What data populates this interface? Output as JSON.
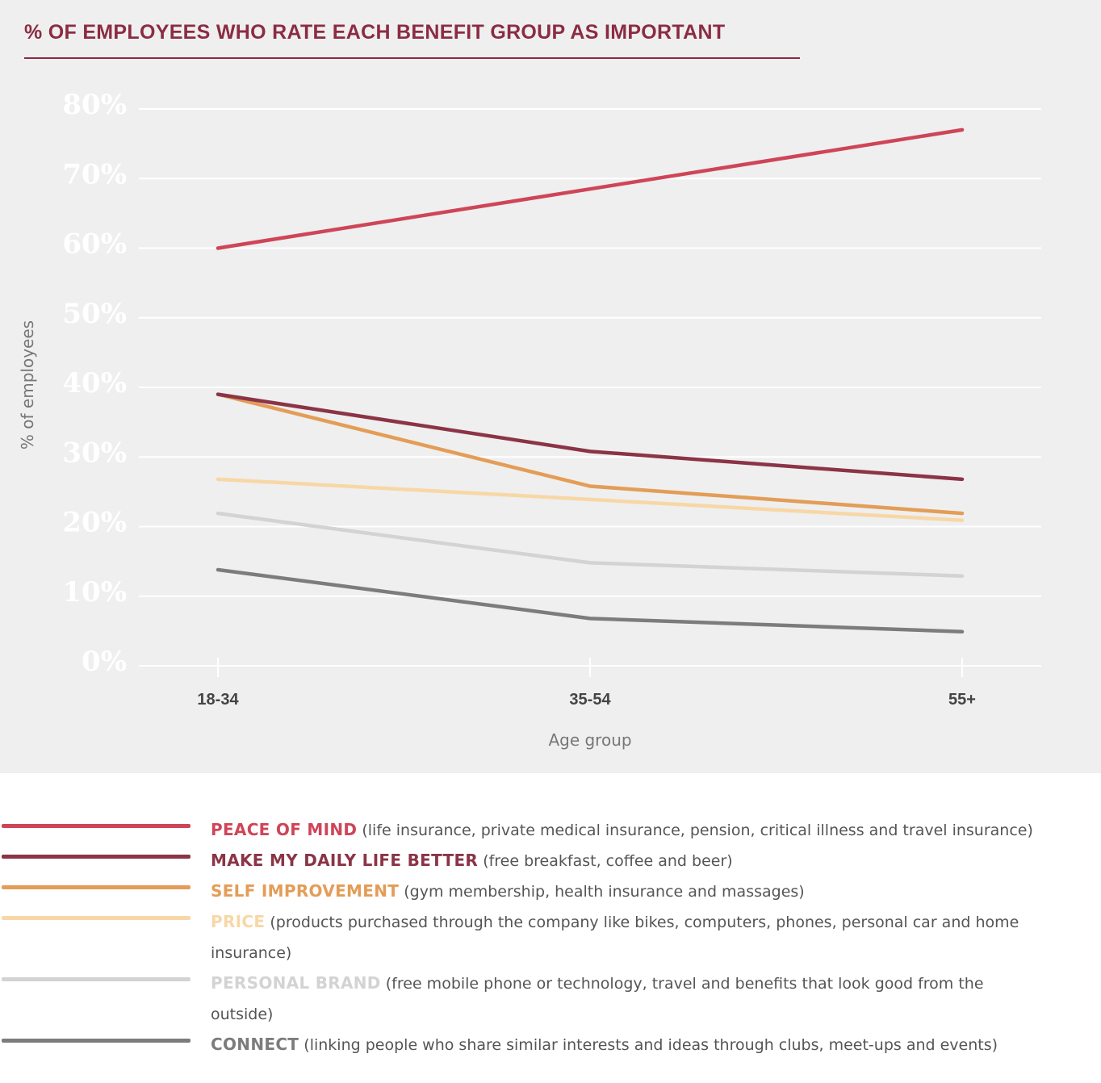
{
  "title": "% OF EMPLOYEES WHO RATE EACH BENEFIT GROUP AS IMPORTANT",
  "chart_data": {
    "type": "line",
    "title": "% OF EMPLOYEES WHO RATE EACH BENEFIT GROUP AS IMPORTANT",
    "xlabel": "Age group",
    "ylabel": "% of employees",
    "categories": [
      "18-34",
      "35-54",
      "55+"
    ],
    "ylim": [
      0,
      80
    ],
    "yticks": [
      0,
      10,
      20,
      30,
      40,
      50,
      60,
      70,
      80
    ],
    "ytick_labels": [
      "0%",
      "10%",
      "20%",
      "30%",
      "40%",
      "50%",
      "60%",
      "70%",
      "80%"
    ],
    "grid": true,
    "legend_position": "bottom",
    "series": [
      {
        "name": "PEACE OF MIND",
        "description": "(life insurance, private medical insurance, pension, critical illness and travel insurance)",
        "color": "#cf4558",
        "values": [
          60,
          68.5,
          77
        ]
      },
      {
        "name": "MAKE MY DAILY LIFE BETTER",
        "description": "(free breakfast, coffee and beer)",
        "color": "#8b3446",
        "values": [
          39,
          30.8,
          26.8
        ]
      },
      {
        "name": "SELF IMPROVEMENT",
        "description": "(gym membership, health insurance and massages)",
        "color": "#e39d57",
        "values": [
          39,
          25.8,
          21.9
        ]
      },
      {
        "name": "PRICE",
        "description": "(products purchased through the company like bikes, computers, phones, personal car and home insurance)",
        "color": "#f8d7a6",
        "values": [
          26.8,
          23.9,
          20.9
        ]
      },
      {
        "name": "PERSONAL BRAND",
        "description": "(free mobile phone or technology, travel and benefits that look good from the outside)",
        "color": "#d3d3d3",
        "values": [
          21.9,
          14.8,
          12.9
        ]
      },
      {
        "name": "CONNECT",
        "description": "(linking people who share similar interests and ideas through clubs, meet-ups and events)",
        "color": "#7c7c7c",
        "values": [
          13.8,
          6.8,
          4.9
        ]
      }
    ]
  }
}
